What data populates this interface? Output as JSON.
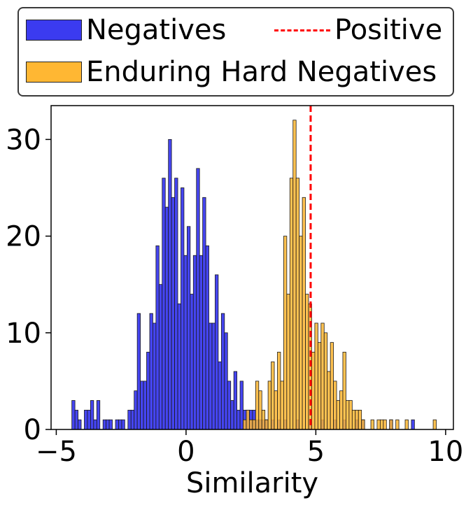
{
  "chart_data": {
    "type": "bar",
    "title": "",
    "xlabel": "Similarity",
    "ylabel": "",
    "xlim": [
      -5.2,
      10.3
    ],
    "ylim": [
      0,
      33.5
    ],
    "xticks": [
      -5,
      0,
      5,
      10
    ],
    "xtick_labels": [
      "−5",
      "0",
      "5",
      "10"
    ],
    "yticks": [
      0,
      10,
      20,
      30
    ],
    "ytick_labels": [
      "0",
      "10",
      "20",
      "30"
    ],
    "bin_width": 0.12,
    "series": [
      {
        "name": "Negatives",
        "color": "#3b3bf0",
        "bins": [
          [
            -4.4,
            3
          ],
          [
            -4.28,
            2
          ],
          [
            -4.16,
            1
          ],
          [
            -3.92,
            2
          ],
          [
            -3.8,
            2
          ],
          [
            -3.68,
            3
          ],
          [
            -3.56,
            1
          ],
          [
            -3.44,
            3
          ],
          [
            -3.2,
            1
          ],
          [
            -3.08,
            1
          ],
          [
            -2.96,
            1
          ],
          [
            -2.72,
            1
          ],
          [
            -2.6,
            1
          ],
          [
            -2.48,
            1
          ],
          [
            -2.24,
            2
          ],
          [
            -2.12,
            2
          ],
          [
            -2.0,
            4
          ],
          [
            -1.88,
            12
          ],
          [
            -1.76,
            5
          ],
          [
            -1.64,
            5
          ],
          [
            -1.52,
            8
          ],
          [
            -1.4,
            12
          ],
          [
            -1.28,
            11
          ],
          [
            -1.16,
            19
          ],
          [
            -1.04,
            15
          ],
          [
            -0.92,
            26
          ],
          [
            -0.8,
            23
          ],
          [
            -0.68,
            30
          ],
          [
            -0.56,
            24
          ],
          [
            -0.44,
            26
          ],
          [
            -0.32,
            13
          ],
          [
            -0.2,
            25
          ],
          [
            -0.08,
            18
          ],
          [
            0.04,
            21
          ],
          [
            0.16,
            14
          ],
          [
            0.28,
            18
          ],
          [
            0.4,
            27
          ],
          [
            0.52,
            18
          ],
          [
            0.64,
            24
          ],
          [
            0.76,
            19
          ],
          [
            0.88,
            11
          ],
          [
            1.0,
            11
          ],
          [
            1.12,
            16
          ],
          [
            1.24,
            7
          ],
          [
            1.36,
            12
          ],
          [
            1.48,
            10
          ],
          [
            1.6,
            5
          ],
          [
            1.72,
            3
          ],
          [
            1.84,
            6
          ],
          [
            1.96,
            2
          ],
          [
            2.08,
            5
          ],
          [
            2.2,
            2
          ],
          [
            2.32,
            2
          ],
          [
            2.44,
            2
          ],
          [
            2.56,
            2
          ],
          [
            2.68,
            1
          ],
          [
            2.8,
            1
          ],
          [
            2.92,
            1
          ],
          [
            3.04,
            1
          ],
          [
            3.28,
            1
          ],
          [
            3.52,
            1
          ],
          [
            3.76,
            1
          ],
          [
            4.24,
            1
          ],
          [
            4.72,
            1
          ],
          [
            5.2,
            1
          ],
          [
            5.68,
            1
          ],
          [
            6.04,
            1
          ],
          [
            6.52,
            1
          ],
          [
            6.76,
            1
          ],
          [
            7.84,
            1
          ],
          [
            8.68,
            1
          ]
        ]
      },
      {
        "name": "Enduring Hard Negatives",
        "color": "#ffb733",
        "bins": [
          [
            2.2,
            1
          ],
          [
            2.32,
            2
          ],
          [
            2.44,
            1
          ],
          [
            2.56,
            1
          ],
          [
            2.68,
            5
          ],
          [
            2.8,
            4
          ],
          [
            2.92,
            2
          ],
          [
            3.04,
            1
          ],
          [
            3.16,
            5
          ],
          [
            3.28,
            7
          ],
          [
            3.4,
            4
          ],
          [
            3.52,
            8
          ],
          [
            3.64,
            5
          ],
          [
            3.76,
            20
          ],
          [
            3.88,
            14
          ],
          [
            4.0,
            26
          ],
          [
            4.12,
            32
          ],
          [
            4.24,
            26
          ],
          [
            4.36,
            20
          ],
          [
            4.48,
            24
          ],
          [
            4.6,
            14
          ],
          [
            4.72,
            13
          ],
          [
            4.84,
            8
          ],
          [
            4.96,
            11
          ],
          [
            5.08,
            9
          ],
          [
            5.2,
            11
          ],
          [
            5.32,
            10
          ],
          [
            5.44,
            6
          ],
          [
            5.56,
            9
          ],
          [
            5.68,
            5
          ],
          [
            5.8,
            3
          ],
          [
            5.92,
            4
          ],
          [
            6.04,
            8
          ],
          [
            6.16,
            3
          ],
          [
            6.28,
            3
          ],
          [
            6.4,
            2
          ],
          [
            6.52,
            2
          ],
          [
            6.64,
            2
          ],
          [
            6.76,
            1
          ],
          [
            7.12,
            1
          ],
          [
            7.36,
            1
          ],
          [
            7.48,
            1
          ],
          [
            7.6,
            1
          ],
          [
            7.84,
            1
          ],
          [
            8.08,
            1
          ],
          [
            8.44,
            1
          ],
          [
            9.52,
            1
          ]
        ]
      }
    ],
    "reference_line": {
      "name": "Positive",
      "x": 4.8,
      "style": "dashed",
      "color": "#ff0000"
    },
    "legend": {
      "placement": "above",
      "entries": [
        "Negatives",
        "Positive",
        "Enduring Hard Negatives"
      ]
    }
  }
}
